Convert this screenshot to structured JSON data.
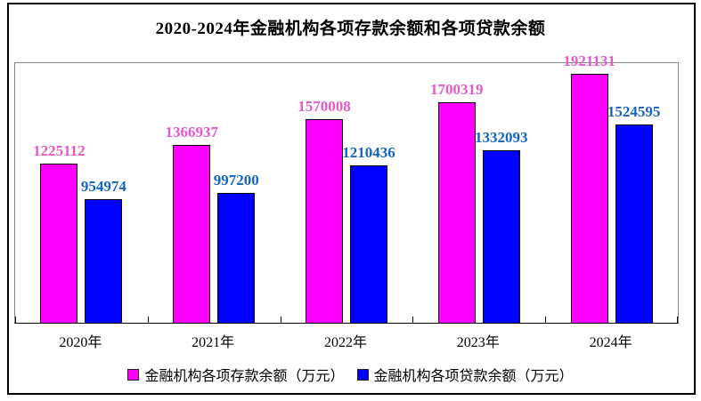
{
  "title": "2020-2024年金融机构各项存款余额和各项贷款余额",
  "colors": {
    "deposit_bar": "#ff00ff",
    "deposit_label": "#e35bc8",
    "loan_bar": "#0000ff",
    "loan_label": "#1565c0",
    "plot_border": "#868686",
    "axis": "#000000",
    "frame_border": "#000000",
    "background": "#ffffff"
  },
  "chart_data": {
    "type": "bar",
    "title": "2020-2024年金融机构各项存款余额和各项贷款余额",
    "categories": [
      "2020年",
      "2021年",
      "2022年",
      "2023年",
      "2024年"
    ],
    "series": [
      {
        "name": "金融机构各项存款余额（万元）",
        "key": "deposit",
        "color": "#ff00ff",
        "label_color": "#e35bc8",
        "values": [
          1225112,
          1366937,
          1570008,
          1700319,
          1921131
        ]
      },
      {
        "name": "金融机构各项贷款余额（万元）",
        "key": "loan",
        "color": "#0000ff",
        "label_color": "#1565c0",
        "values": [
          954974,
          997200,
          1210436,
          1332093,
          1524595
        ]
      }
    ],
    "xlabel": "",
    "ylabel": "",
    "ylim": [
      0,
      2000000
    ],
    "grid": false,
    "y_axis_visible": false,
    "data_labels": true,
    "legend_position": "bottom"
  }
}
